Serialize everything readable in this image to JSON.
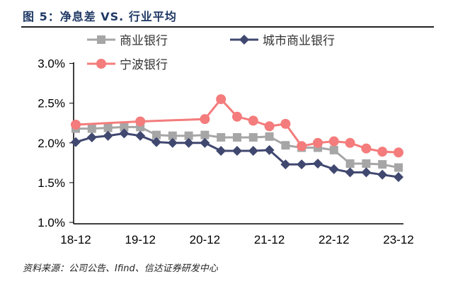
{
  "title": "图 5：净息差 VS. 行业平均",
  "source": "资料来源：公司公告、Ifind、信达证券研发中心",
  "chart_data": {
    "type": "line",
    "title": "净息差 VS. 行业平均",
    "ylim": [
      1.0,
      3.0
    ],
    "yticks": [
      "1.0%",
      "1.5%",
      "2.0%",
      "2.5%",
      "3.0%"
    ],
    "ytick_values": [
      1.0,
      1.5,
      2.0,
      2.5,
      3.0
    ],
    "xticks": [
      "18-12",
      "19-12",
      "20-12",
      "21-12",
      "22-12",
      "23-12"
    ],
    "x": [
      "18-12",
      "19-03",
      "19-06",
      "19-09",
      "19-12",
      "20-03",
      "20-06",
      "20-09",
      "20-12",
      "21-03",
      "21-06",
      "21-09",
      "21-12",
      "22-03",
      "22-06",
      "22-09",
      "22-12",
      "23-03",
      "23-06",
      "23-09",
      "23-12"
    ],
    "legend_placement": "top",
    "series": [
      {
        "name": "商业银行",
        "color": "#a6a6a6",
        "marker": "square",
        "values": [
          2.18,
          2.18,
          2.19,
          2.2,
          2.2,
          2.1,
          2.09,
          2.09,
          2.1,
          2.07,
          2.07,
          2.07,
          2.08,
          1.97,
          1.94,
          1.94,
          1.91,
          1.74,
          1.74,
          1.73,
          1.69
        ]
      },
      {
        "name": "城市商业银行",
        "color": "#404870",
        "marker": "diamond",
        "values": [
          2.01,
          2.07,
          2.09,
          2.12,
          2.09,
          2.01,
          2.0,
          2.0,
          2.0,
          1.9,
          1.9,
          1.9,
          1.91,
          1.73,
          1.73,
          1.74,
          1.67,
          1.63,
          1.63,
          1.6,
          1.57
        ]
      },
      {
        "name": "宁波银行",
        "color": "#f47c7c",
        "marker": "circle",
        "values": [
          2.23,
          null,
          null,
          null,
          2.27,
          null,
          null,
          null,
          2.3,
          2.55,
          2.33,
          2.28,
          2.21,
          2.24,
          1.96,
          2.0,
          2.02,
          2.0,
          1.93,
          1.89,
          1.88
        ]
      }
    ]
  }
}
